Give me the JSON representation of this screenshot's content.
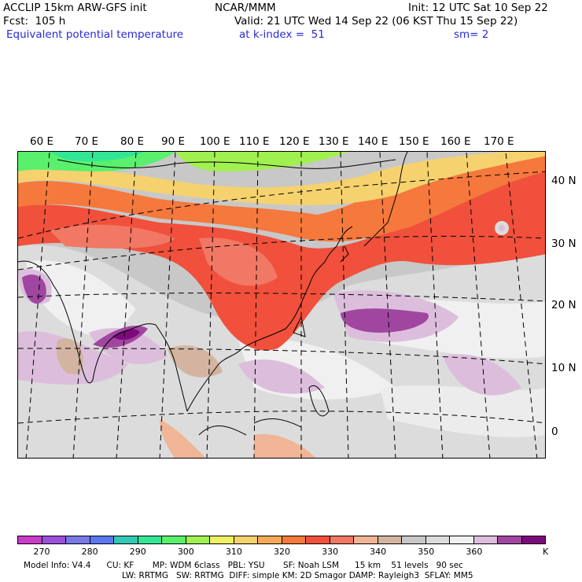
{
  "header": {
    "model": "ACCLIP 15km ARW-GFS init",
    "center": "NCAR/MMM",
    "init": "Init: 12 UTC Sat 10 Sep 22",
    "fcst": "Fcst:  105 h",
    "valid": "Valid: 21 UTC Wed 14 Sep 22 (06 KST Thu 15 Sep 22)",
    "field": "Equivalent potential temperature",
    "level": "at k-index =  51",
    "smooth": "sm= 2"
  },
  "map": {
    "lon_labels": [
      "60 E",
      "70 E",
      "80 E",
      "90 E",
      "100 E",
      "110 E",
      "120 E",
      "130 E",
      "140 E",
      "150 E",
      "160 E",
      "170 E"
    ],
    "lat_labels": [
      "40 N",
      "30 N",
      "20 N",
      "10 N",
      "0"
    ]
  },
  "colorbar": {
    "colors": [
      "#c83cc8",
      "#9b50dc",
      "#7878e6",
      "#5a78f0",
      "#32c8b4",
      "#32e696",
      "#5af06e",
      "#a0f050",
      "#f0f064",
      "#f5d26e",
      "#f5aa5a",
      "#f5783c",
      "#f0503c",
      "#f07864",
      "#f0b496",
      "#d2b4a0",
      "#c8c8c8",
      "#dcdcdc",
      "#f0f0f0",
      "#dcbedc",
      "#a046a0",
      "#7d0a7d"
    ],
    "labels": [
      "270",
      "280",
      "290",
      "300",
      "310",
      "320",
      "330",
      "340",
      "350",
      "360"
    ],
    "unit": "K"
  },
  "footer": {
    "line1": "Model Info: V4.4      CU: KF       MP: WDM 6class   PBL: YSU       SF: Noah LSM      15 km    51 levels   90 sec",
    "line2": "LW: RRTMG   SW: RRTMG  DIFF: simple KM: 2D Smagor DAMP: Rayleigh3  SFLAY: MM5"
  }
}
